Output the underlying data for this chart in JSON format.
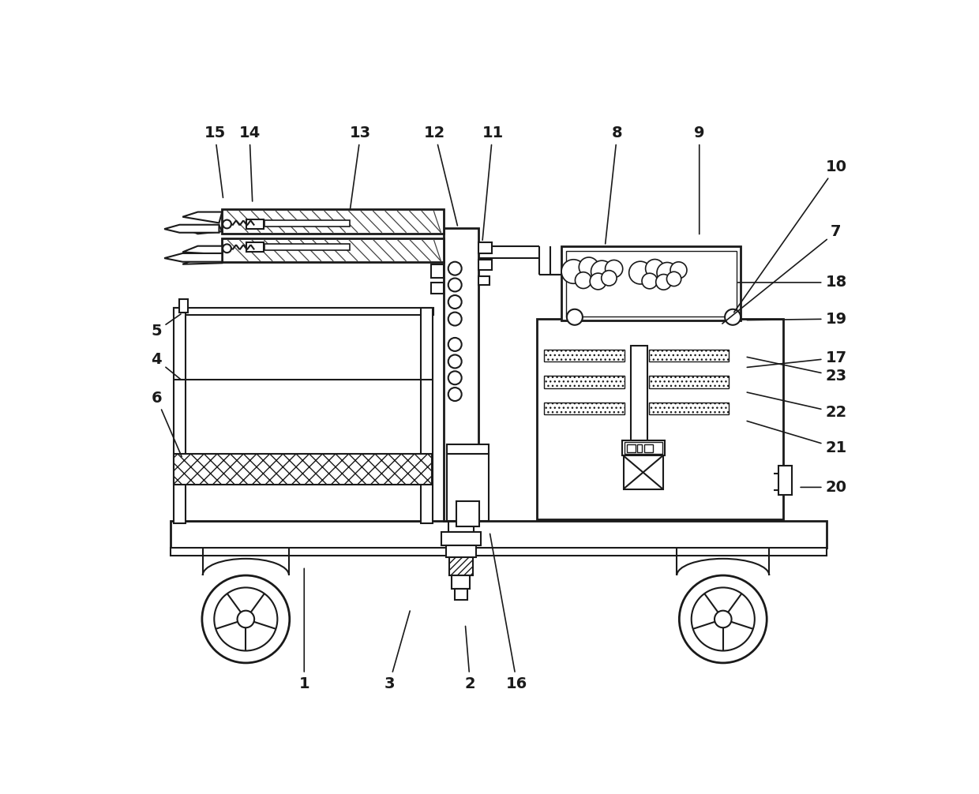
{
  "bg_color": "#ffffff",
  "lc": "#1a1a1a",
  "lw": 1.5,
  "fig_width": 12.4,
  "fig_height": 10.06,
  "label_data": [
    [
      "1",
      295,
      968,
      295,
      775
    ],
    [
      "2",
      568,
      968,
      560,
      870
    ],
    [
      "3",
      435,
      968,
      470,
      845
    ],
    [
      "4",
      52,
      435,
      95,
      470
    ],
    [
      "5",
      52,
      388,
      95,
      358
    ],
    [
      "6",
      52,
      498,
      95,
      598
    ],
    [
      "7",
      1170,
      225,
      980,
      378
    ],
    [
      "8",
      810,
      62,
      790,
      248
    ],
    [
      "9",
      945,
      62,
      945,
      232
    ],
    [
      "10",
      1170,
      118,
      1000,
      360
    ],
    [
      "11",
      605,
      62,
      588,
      242
    ],
    [
      "12",
      510,
      62,
      548,
      218
    ],
    [
      "13",
      388,
      62,
      370,
      192
    ],
    [
      "14",
      205,
      62,
      210,
      178
    ],
    [
      "15",
      148,
      62,
      162,
      172
    ],
    [
      "16",
      645,
      968,
      600,
      718
    ],
    [
      "17",
      1170,
      432,
      1020,
      448
    ],
    [
      "18",
      1170,
      308,
      1005,
      308
    ],
    [
      "19",
      1170,
      368,
      1020,
      370
    ],
    [
      "20",
      1170,
      645,
      1108,
      645
    ],
    [
      "21",
      1170,
      580,
      1020,
      535
    ],
    [
      "22",
      1170,
      522,
      1020,
      488
    ],
    [
      "23",
      1170,
      462,
      1020,
      430
    ]
  ]
}
